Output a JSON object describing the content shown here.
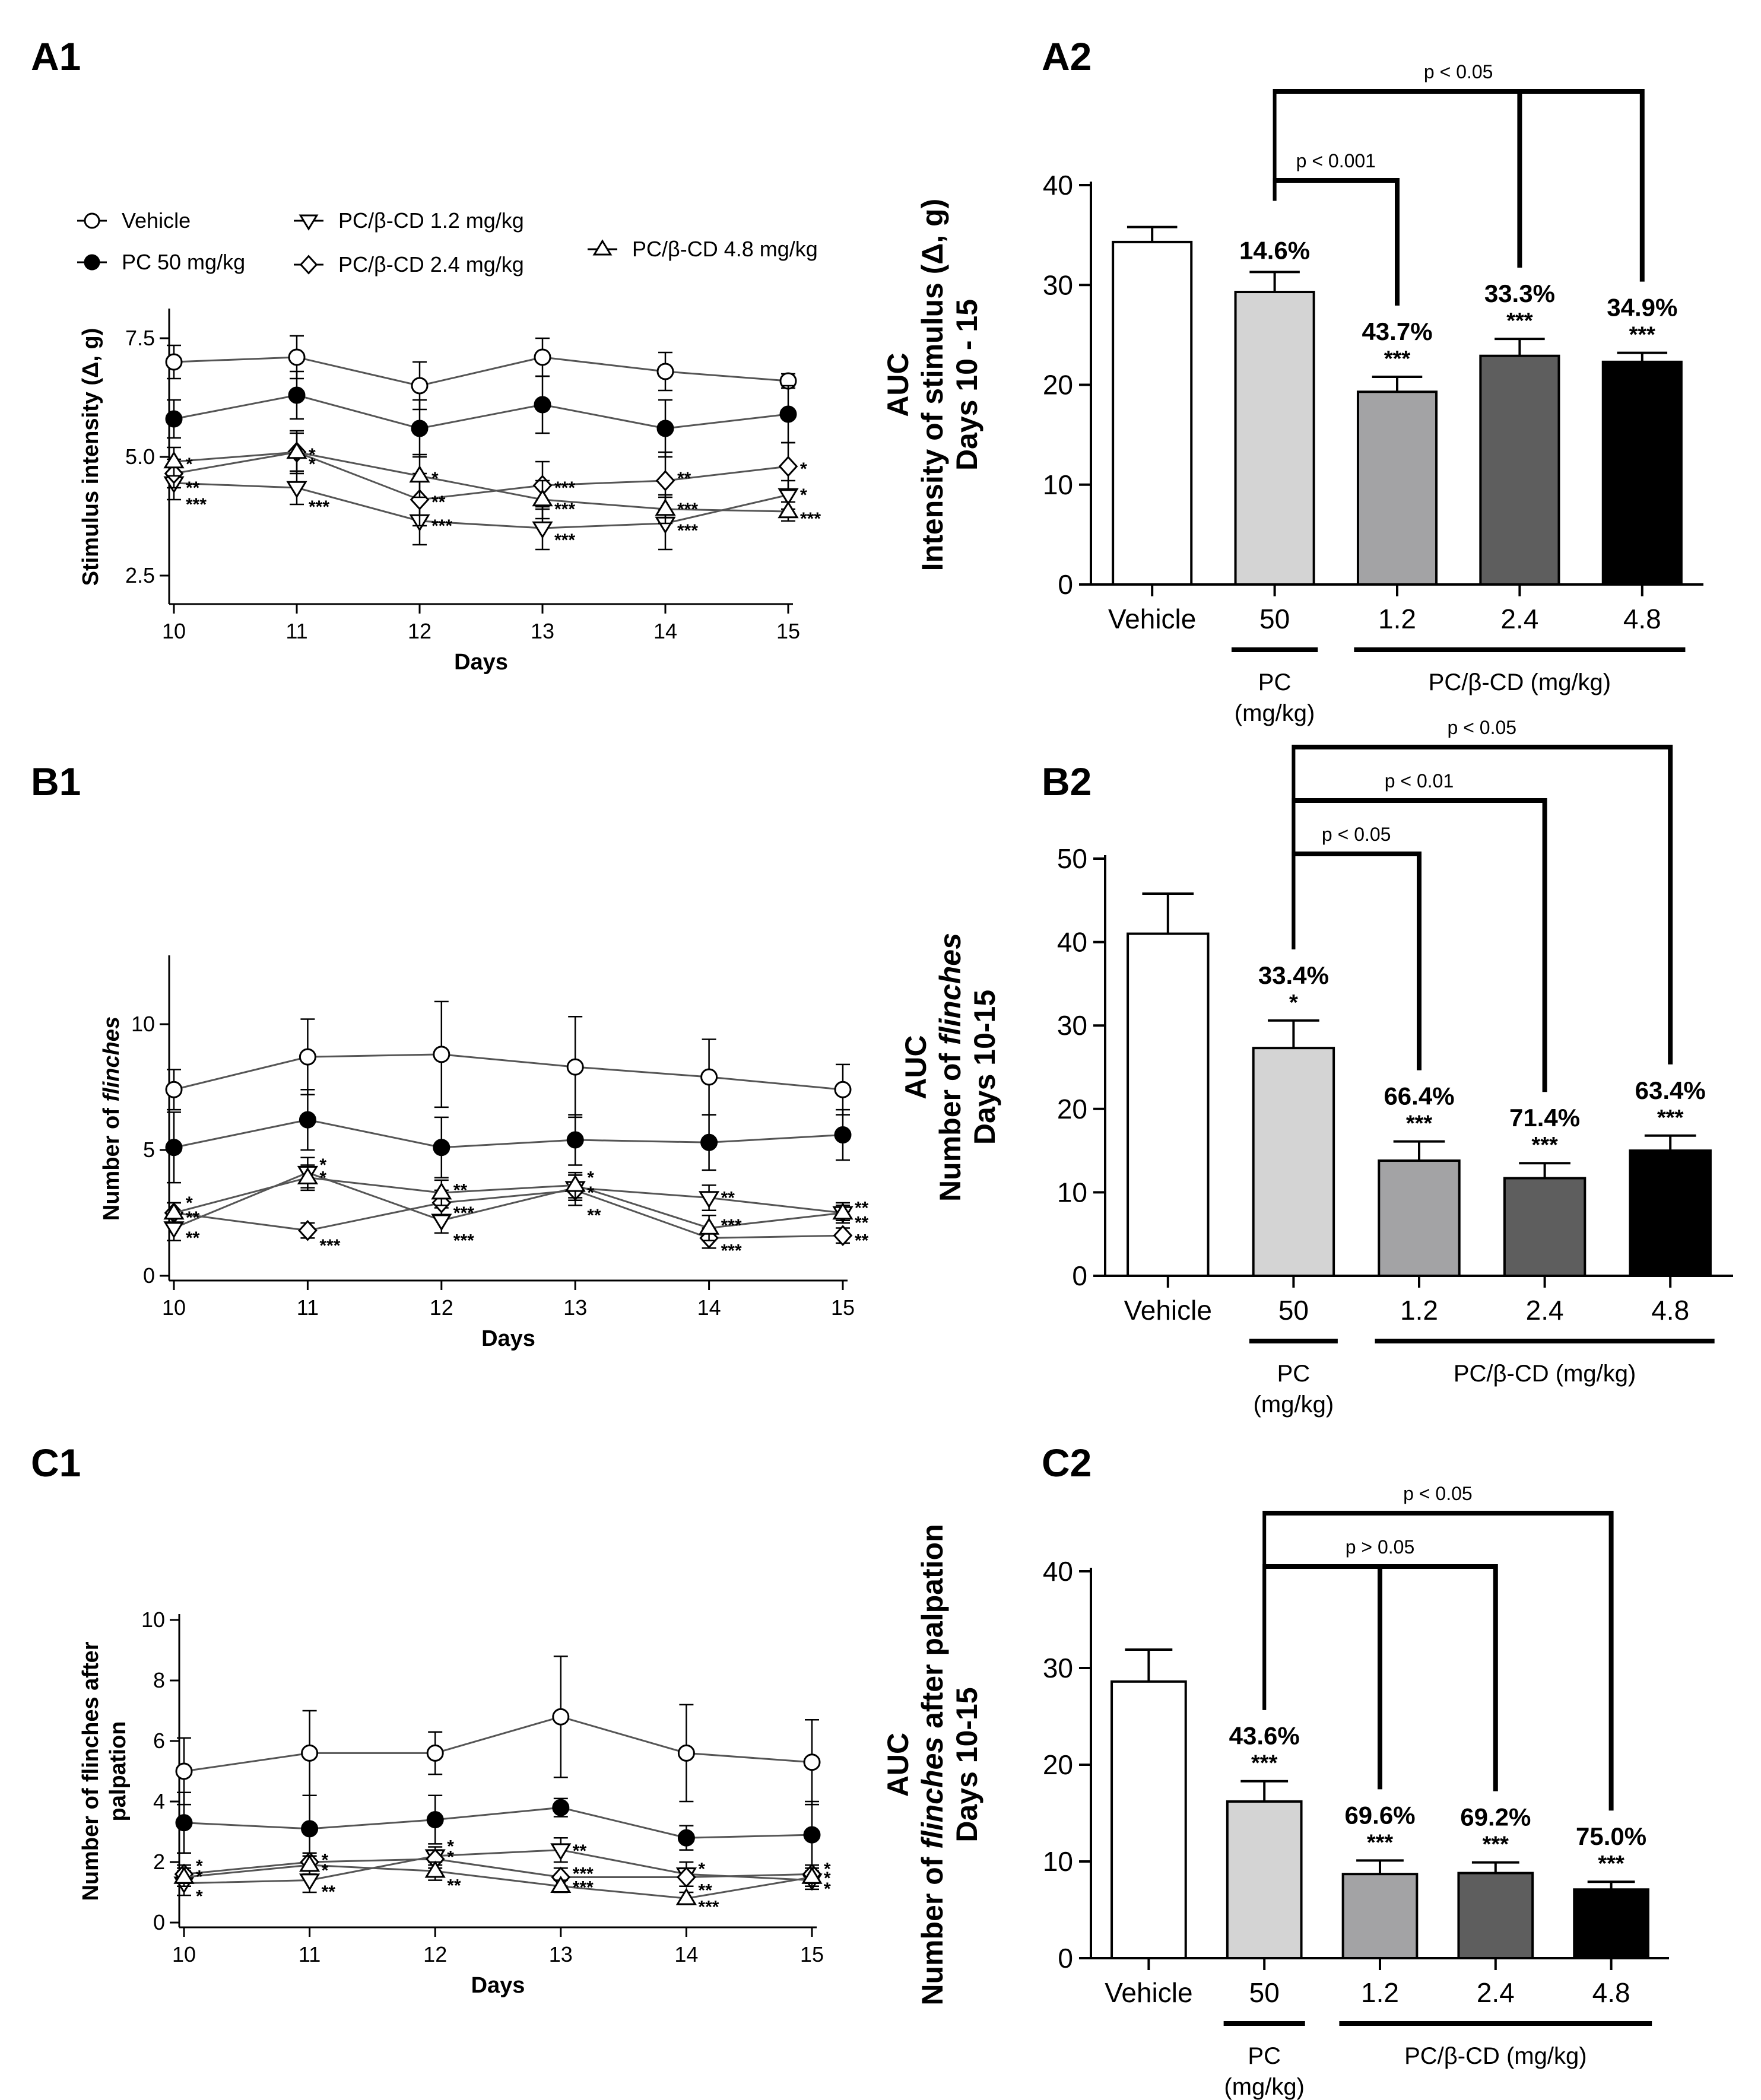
{
  "chart_data": [
    {
      "id": "A1",
      "type": "line",
      "panel_label": "A1",
      "xlabel": "Days",
      "ylabel": "Stimulus intensity (Δ, g)",
      "x": [
        10,
        11,
        12,
        13,
        14,
        15
      ],
      "x_tick_labels": [
        "10",
        "11",
        "12",
        "13",
        "14",
        "15"
      ],
      "ylim": [
        2.0,
        8.0
      ],
      "y_ticks": [
        2.5,
        5.0,
        7.5
      ],
      "y_tick_labels": [
        "2.5",
        "5.0",
        "7.5"
      ],
      "legend": [
        {
          "name": "Vehicle",
          "marker": "open-circle"
        },
        {
          "name": "PC 50 mg/kg",
          "marker": "filled-circle"
        },
        {
          "name": "PC/β-CD 1.2 mg/kg",
          "marker": "down-triangle"
        },
        {
          "name": "PC/β-CD 2.4 mg/kg",
          "marker": "diamond"
        },
        {
          "name": "PC/β-CD 4.8 mg/kg",
          "marker": "up-triangle"
        }
      ],
      "series": [
        {
          "name": "Vehicle",
          "marker": "open-circle",
          "values": [
            7.0,
            7.1,
            6.5,
            7.1,
            6.8,
            6.6
          ],
          "err": [
            0.35,
            0.45,
            0.5,
            0.4,
            0.4,
            0.15
          ]
        },
        {
          "name": "PC 50 mg/kg",
          "marker": "filled-circle",
          "values": [
            5.8,
            6.3,
            5.6,
            6.1,
            5.6,
            5.9
          ],
          "err": [
            0.4,
            0.5,
            0.6,
            0.6,
            0.6,
            0.6
          ]
        },
        {
          "name": "PC/β-CD 1.2 mg/kg",
          "marker": "down-triangle",
          "values": [
            4.45,
            4.35,
            3.65,
            3.5,
            3.6,
            4.2
          ],
          "err": [
            0.35,
            0.35,
            0.5,
            0.45,
            0.55,
            0.3
          ]
        },
        {
          "name": "PC/β-CD 2.4 mg/kg",
          "marker": "diamond",
          "values": [
            4.65,
            5.1,
            4.1,
            4.4,
            4.5,
            4.8
          ],
          "err": [
            0.3,
            0.45,
            0.55,
            0.5,
            0.6,
            0.5
          ]
        },
        {
          "name": "PC/β-CD 4.8 mg/kg",
          "marker": "up-triangle",
          "values": [
            4.9,
            5.1,
            4.6,
            4.1,
            3.9,
            3.85
          ],
          "err": [
            0.3,
            0.4,
            0.45,
            0.4,
            0.3,
            0.2
          ]
        }
      ],
      "annotations": [
        {
          "x": 10,
          "y": 4.9,
          "text": "*"
        },
        {
          "x": 10,
          "y": 4.4,
          "text": "**"
        },
        {
          "x": 10,
          "y": 4.05,
          "text": "***"
        },
        {
          "x": 11,
          "y": 5.1,
          "text": "*"
        },
        {
          "x": 11,
          "y": 4.9,
          "text": "*"
        },
        {
          "x": 11,
          "y": 4.0,
          "text": "***"
        },
        {
          "x": 12,
          "y": 4.6,
          "text": "*"
        },
        {
          "x": 12,
          "y": 4.1,
          "text": "**"
        },
        {
          "x": 12,
          "y": 3.6,
          "text": "***"
        },
        {
          "x": 13,
          "y": 4.4,
          "text": "***"
        },
        {
          "x": 13,
          "y": 3.95,
          "text": "***"
        },
        {
          "x": 13,
          "y": 3.3,
          "text": "***"
        },
        {
          "x": 14,
          "y": 4.6,
          "text": "**"
        },
        {
          "x": 14,
          "y": 3.95,
          "text": "***"
        },
        {
          "x": 14,
          "y": 3.5,
          "text": "***"
        },
        {
          "x": 15,
          "y": 4.8,
          "text": "*"
        },
        {
          "x": 15,
          "y": 4.25,
          "text": "*"
        },
        {
          "x": 15,
          "y": 3.75,
          "text": "***"
        }
      ]
    },
    {
      "id": "A2",
      "type": "bar",
      "panel_label": "A2",
      "ylabel_lines": [
        "AUC",
        "Intensity of stimulus (Δ, g)",
        "Days 10 - 15"
      ],
      "categories": [
        "Vehicle",
        "50",
        "1.2",
        "2.4",
        "4.8"
      ],
      "values": [
        34.3,
        29.3,
        19.3,
        22.9,
        22.3
      ],
      "err": [
        1.5,
        2.0,
        1.5,
        1.7,
        0.9
      ],
      "fills": [
        "#ffffff",
        "#d4d4d4",
        "#a3a3a5",
        "#5e5e5e",
        "#000000"
      ],
      "ylim": [
        0,
        40
      ],
      "y_ticks": [
        0,
        10,
        20,
        30,
        40
      ],
      "y_tick_labels": [
        "0",
        "10",
        "20",
        "30",
        "40"
      ],
      "pct_labels": [
        "",
        "14.6%",
        "43.7%",
        "33.3%",
        "34.9%"
      ],
      "sig_labels": [
        "",
        "",
        "***",
        "***",
        "***"
      ],
      "group_labels": [
        {
          "text_lines": [
            "PC",
            "(mg/kg)"
          ],
          "from": 1,
          "to": 1
        },
        {
          "text_lines": [
            "PC/β-CD (mg/kg)"
          ],
          "from": 2,
          "to": 4
        }
      ],
      "brackets": [
        {
          "text": "p < 0.05",
          "from": 1,
          "to": [
            3,
            4
          ],
          "level": 2
        },
        {
          "text": "p < 0.001",
          "from": 1,
          "to": [
            2
          ],
          "level": 1
        }
      ]
    },
    {
      "id": "B1",
      "type": "line",
      "panel_label": "B1",
      "xlabel": "Days",
      "ylabel": "Number of flinches",
      "x": [
        10,
        11,
        12,
        13,
        14,
        15
      ],
      "x_tick_labels": [
        "10",
        "11",
        "12",
        "13",
        "14",
        "15"
      ],
      "ylim": [
        0,
        12.5
      ],
      "y_ticks": [
        0,
        5,
        10
      ],
      "y_tick_labels": [
        "0",
        "5",
        "10"
      ],
      "series": [
        {
          "name": "Vehicle",
          "marker": "open-circle",
          "values": [
            7.4,
            8.7,
            8.8,
            8.3,
            7.9,
            7.4
          ],
          "err": [
            0.8,
            1.5,
            2.1,
            2.0,
            1.5,
            1.0
          ]
        },
        {
          "name": "PC 50 mg/kg",
          "marker": "filled-circle",
          "values": [
            5.1,
            6.2,
            5.1,
            5.4,
            5.3,
            5.6
          ],
          "err": [
            1.4,
            1.2,
            1.2,
            1.0,
            1.1,
            1.0
          ]
        },
        {
          "name": "PC/β-CD 1.2 mg/kg",
          "marker": "down-triangle",
          "values": [
            1.9,
            4.1,
            2.2,
            3.5,
            3.1,
            2.5
          ],
          "err": [
            0.5,
            0.6,
            0.5,
            0.5,
            0.5,
            0.3
          ]
        },
        {
          "name": "PC/β-CD 2.4 mg/kg",
          "marker": "diamond",
          "values": [
            2.5,
            1.8,
            2.9,
            3.4,
            1.5,
            1.6
          ],
          "err": [
            0.4,
            0.3,
            0.5,
            0.6,
            0.4,
            0.3
          ]
        },
        {
          "name": "PC/β-CD 4.8 mg/kg",
          "marker": "up-triangle",
          "values": [
            2.5,
            3.9,
            3.3,
            3.6,
            1.9,
            2.5
          ],
          "err": [
            0.4,
            0.5,
            0.5,
            0.5,
            0.5,
            0.4
          ]
        }
      ],
      "annotations": [
        {
          "x": 10,
          "y": 3.0,
          "text": "*"
        },
        {
          "x": 10,
          "y": 2.4,
          "text": "**"
        },
        {
          "x": 10,
          "y": 1.6,
          "text": "**"
        },
        {
          "x": 11,
          "y": 4.5,
          "text": "*"
        },
        {
          "x": 11,
          "y": 4.0,
          "text": "*"
        },
        {
          "x": 11,
          "y": 1.3,
          "text": "***"
        },
        {
          "x": 12,
          "y": 3.5,
          "text": "**"
        },
        {
          "x": 12,
          "y": 2.6,
          "text": "***"
        },
        {
          "x": 12,
          "y": 1.5,
          "text": "***"
        },
        {
          "x": 13,
          "y": 4.0,
          "text": "*"
        },
        {
          "x": 13,
          "y": 3.4,
          "text": "*"
        },
        {
          "x": 13,
          "y": 2.5,
          "text": "**"
        },
        {
          "x": 14,
          "y": 3.2,
          "text": "**"
        },
        {
          "x": 14,
          "y": 2.1,
          "text": "***"
        },
        {
          "x": 14,
          "y": 1.1,
          "text": "***"
        },
        {
          "x": 15,
          "y": 2.8,
          "text": "**"
        },
        {
          "x": 15,
          "y": 2.2,
          "text": "**"
        },
        {
          "x": 15,
          "y": 1.5,
          "text": "**"
        }
      ]
    },
    {
      "id": "B2",
      "type": "bar",
      "panel_label": "B2",
      "ylabel_lines": [
        "AUC",
        "Number of flinches",
        "Days 10-15"
      ],
      "categories": [
        "Vehicle",
        "50",
        "1.2",
        "2.4",
        "4.8"
      ],
      "values": [
        41.0,
        27.3,
        13.8,
        11.7,
        15.0
      ],
      "err": [
        4.8,
        3.3,
        2.3,
        1.8,
        1.8
      ],
      "fills": [
        "#ffffff",
        "#d4d4d4",
        "#a3a3a5",
        "#5e5e5e",
        "#000000"
      ],
      "ylim": [
        0,
        50
      ],
      "y_ticks": [
        0,
        10,
        20,
        30,
        40,
        50
      ],
      "y_tick_labels": [
        "0",
        "10",
        "20",
        "30",
        "40",
        "50"
      ],
      "pct_labels": [
        "",
        "33.4%",
        "66.4%",
        "71.4%",
        "63.4%"
      ],
      "sig_labels": [
        "",
        "*",
        "***",
        "***",
        "***"
      ],
      "group_labels": [
        {
          "text_lines": [
            "PC",
            "(mg/kg)"
          ],
          "from": 1,
          "to": 1
        },
        {
          "text_lines": [
            "PC/β-CD (mg/kg)"
          ],
          "from": 2,
          "to": 4
        }
      ],
      "brackets": [
        {
          "text": "p < 0.05",
          "from": 1,
          "to": [
            4
          ],
          "level": 3
        },
        {
          "text": "p < 0.01",
          "from": 1,
          "to": [
            3
          ],
          "level": 2
        },
        {
          "text": "p < 0.05",
          "from": 1,
          "to": [
            2
          ],
          "level": 1
        }
      ]
    },
    {
      "id": "C1",
      "type": "line",
      "panel_label": "C1",
      "xlabel": "Days",
      "ylabel_lines": [
        "Number of flinches after",
        "palpation"
      ],
      "x": [
        10,
        11,
        12,
        13,
        14,
        15
      ],
      "x_tick_labels": [
        "10",
        "11",
        "12",
        "13",
        "14",
        "15"
      ],
      "ylim": [
        0,
        10
      ],
      "y_ticks": [
        0,
        2,
        4,
        6,
        8,
        10
      ],
      "y_tick_labels": [
        "0",
        "2",
        "4",
        "6",
        "8",
        "10"
      ],
      "series": [
        {
          "name": "Vehicle",
          "marker": "open-circle",
          "values": [
            5.0,
            5.6,
            5.6,
            6.8,
            5.6,
            5.3
          ],
          "err": [
            1.1,
            1.4,
            0.7,
            2.0,
            1.6,
            1.4
          ]
        },
        {
          "name": "PC 50 mg/kg",
          "marker": "filled-circle",
          "values": [
            3.3,
            3.1,
            3.4,
            3.8,
            2.8,
            2.9
          ],
          "err": [
            1.0,
            1.1,
            0.8,
            0.3,
            0.4,
            1.1
          ]
        },
        {
          "name": "PC/β-CD 1.2 mg/kg",
          "marker": "down-triangle",
          "values": [
            1.3,
            1.4,
            2.2,
            2.4,
            1.6,
            1.4
          ],
          "err": [
            0.4,
            0.4,
            0.3,
            0.4,
            0.4,
            0.3
          ]
        },
        {
          "name": "PC/β-CD 2.4 mg/kg",
          "marker": "diamond",
          "values": [
            1.6,
            2.0,
            2.1,
            1.5,
            1.5,
            1.6
          ],
          "err": [
            0.3,
            0.3,
            0.3,
            0.3,
            0.3,
            0.3
          ]
        },
        {
          "name": "PC/β-CD 4.8 mg/kg",
          "marker": "up-triangle",
          "values": [
            1.5,
            1.9,
            1.7,
            1.2,
            0.8,
            1.5
          ],
          "err": [
            0.3,
            0.3,
            0.3,
            0.2,
            0.2,
            0.3
          ]
        }
      ],
      "annotations": [
        {
          "x": 10,
          "y": 1.95,
          "text": "*"
        },
        {
          "x": 10,
          "y": 1.6,
          "text": "*"
        },
        {
          "x": 10,
          "y": 0.95,
          "text": "*"
        },
        {
          "x": 11,
          "y": 2.15,
          "text": "*"
        },
        {
          "x": 11,
          "y": 1.8,
          "text": "*"
        },
        {
          "x": 11,
          "y": 1.1,
          "text": "**"
        },
        {
          "x": 12,
          "y": 2.6,
          "text": "*"
        },
        {
          "x": 12,
          "y": 2.25,
          "text": "*"
        },
        {
          "x": 12,
          "y": 1.3,
          "text": "**"
        },
        {
          "x": 13,
          "y": 2.45,
          "text": "**"
        },
        {
          "x": 13,
          "y": 1.7,
          "text": "***"
        },
        {
          "x": 13,
          "y": 1.25,
          "text": "***"
        },
        {
          "x": 14,
          "y": 1.85,
          "text": "*"
        },
        {
          "x": 14,
          "y": 1.15,
          "text": "**"
        },
        {
          "x": 14,
          "y": 0.6,
          "text": "***"
        },
        {
          "x": 15,
          "y": 1.85,
          "text": "*"
        },
        {
          "x": 15,
          "y": 1.55,
          "text": "*"
        },
        {
          "x": 15,
          "y": 1.2,
          "text": "*"
        }
      ]
    },
    {
      "id": "C2",
      "type": "bar",
      "panel_label": "C2",
      "ylabel_lines": [
        "AUC",
        "Number of flinches after palpation",
        "Days 10-15"
      ],
      "categories": [
        "Vehicle",
        "50",
        "1.2",
        "2.4",
        "4.8"
      ],
      "values": [
        28.6,
        16.2,
        8.7,
        8.8,
        7.1
      ],
      "err": [
        3.3,
        2.1,
        1.4,
        1.1,
        0.8
      ],
      "fills": [
        "#ffffff",
        "#d4d4d4",
        "#a3a3a5",
        "#5e5e5e",
        "#000000"
      ],
      "ylim": [
        0,
        40
      ],
      "y_ticks": [
        0,
        10,
        20,
        30,
        40
      ],
      "y_tick_labels": [
        "0",
        "10",
        "20",
        "30",
        "40"
      ],
      "pct_labels": [
        "",
        "43.6%",
        "69.6%",
        "69.2%",
        "75.0%"
      ],
      "sig_labels": [
        "",
        "***",
        "***",
        "***",
        "***"
      ],
      "group_labels": [
        {
          "text_lines": [
            "PC",
            "(mg/kg)"
          ],
          "from": 1,
          "to": 1
        },
        {
          "text_lines": [
            "PC/β-CD (mg/kg)"
          ],
          "from": 2,
          "to": 4
        }
      ],
      "brackets": [
        {
          "text": "p < 0.05",
          "from": 1,
          "to": [
            4
          ],
          "level": 2
        },
        {
          "text": "p > 0.05",
          "from": 1,
          "to": [
            2,
            3
          ],
          "level": 1
        }
      ]
    }
  ]
}
